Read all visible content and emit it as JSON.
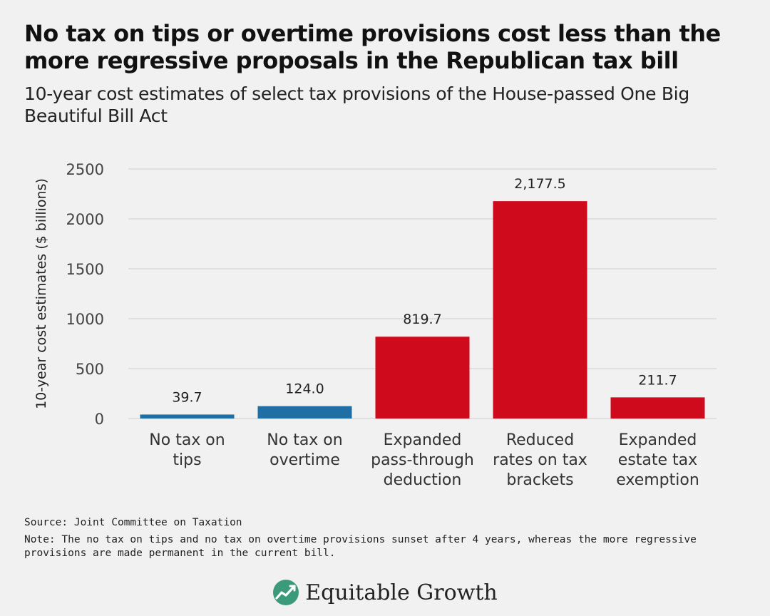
{
  "header": {
    "title": "No tax on tips or overtime provisions cost less than the more regressive proposals in the Republican tax bill",
    "subtitle": "10-year cost estimates of select tax provisions of the House-passed One Big Beautiful Bill Act"
  },
  "chart_data": {
    "type": "bar",
    "title": "No tax on tips or overtime provisions cost less than the more regressive proposals in the Republican tax bill",
    "subtitle": "10-year cost estimates of select tax provisions of the House-passed One Big Beautiful Bill Act",
    "xlabel": "",
    "ylabel": "10-year cost estimates ($ billions)",
    "ylim": [
      0,
      2500
    ],
    "yticks": [
      0,
      500,
      1000,
      1500,
      2000,
      2500
    ],
    "grid": true,
    "categories": [
      [
        "No tax on",
        "tips"
      ],
      [
        "No tax on",
        "overtime"
      ],
      [
        "Expanded",
        "pass-through",
        "deduction"
      ],
      [
        "Reduced",
        "rates on tax",
        "brackets"
      ],
      [
        "Expanded",
        "estate tax",
        "exemption"
      ]
    ],
    "values": [
      39.7,
      124.0,
      819.7,
      2177.5,
      211.7
    ],
    "data_labels": [
      "39.7",
      "124.0",
      "819.7",
      "2,177.5",
      "211.7"
    ],
    "colors": [
      "#1f6fa5",
      "#1f6fa5",
      "#cf0a1c",
      "#cf0a1c",
      "#cf0a1c"
    ]
  },
  "footer": {
    "source": "Source: Joint Committee on Taxation",
    "note": "Note: The no tax on tips and no tax on overtime provisions sunset after 4 years, whereas the more regressive provisions are made permanent in the current bill."
  },
  "logo": {
    "text": "Equitable Growth",
    "icon": "equitable-growth-logo-icon",
    "color": "#3a9a7a"
  }
}
